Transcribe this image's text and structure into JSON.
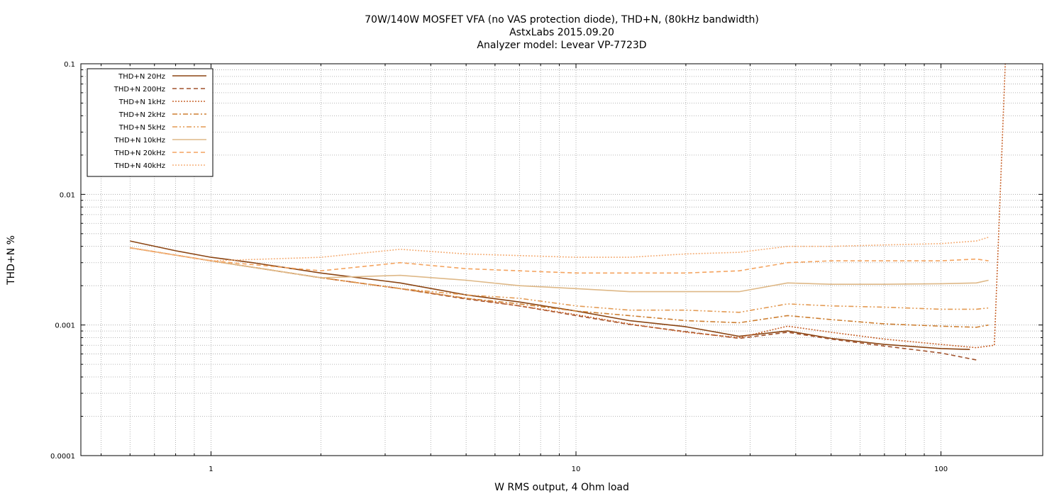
{
  "chart_data": {
    "type": "line",
    "title": [
      "70W/140W MOSFET VFA (no VAS protection diode), THD+N, (80kHz bandwidth)",
      "AstxLabs 2015.09.20",
      "Analyzer model: Levear VP-7723D"
    ],
    "xlabel": "W RMS output, 4 Ohm load",
    "ylabel": "THD+N %",
    "xscale": "log",
    "yscale": "log",
    "xlim": [
      0.44,
      190
    ],
    "ylim": [
      0.0001,
      0.1
    ],
    "x_ticks": [
      {
        "value": 1,
        "label": "1"
      },
      {
        "value": 10,
        "label": "10"
      },
      {
        "value": 100,
        "label": "100"
      }
    ],
    "y_ticks": [
      {
        "value": 0.0001,
        "label": "0.0001"
      },
      {
        "value": 0.001,
        "label": "0.001"
      },
      {
        "value": 0.01,
        "label": "0.01"
      },
      {
        "value": 0.1,
        "label": "0.1"
      }
    ],
    "grid": true,
    "legend_position": "top-left",
    "series": [
      {
        "name": "THD+N 20Hz",
        "color": "#8b4513",
        "dash": "solid",
        "x": [
          0.6,
          0.8,
          1.0,
          1.3,
          2.0,
          3.3,
          5.0,
          7.0,
          10.0,
          14.0,
          20.0,
          28.0,
          38.0,
          50.0,
          70.0,
          100.0,
          120.0
        ],
        "y": [
          0.0044,
          0.0037,
          0.0033,
          0.003,
          0.0025,
          0.0021,
          0.0017,
          0.0015,
          0.00128,
          0.00108,
          0.00097,
          0.00082,
          0.0009,
          0.00079,
          0.00071,
          0.00066,
          0.00065
        ]
      },
      {
        "name": "THD+N 200Hz",
        "color": "#a0522d",
        "dash": "dashed",
        "x": [
          0.6,
          1.0,
          2.0,
          3.3,
          5.0,
          7.0,
          10.0,
          14.0,
          20.0,
          28.0,
          38.0,
          50.0,
          70.0,
          100.0,
          125.0
        ],
        "y": [
          0.0039,
          0.0031,
          0.0023,
          0.0019,
          0.00158,
          0.0014,
          0.00118,
          0.00101,
          0.00089,
          0.00079,
          0.00088,
          0.00078,
          0.00069,
          0.00061,
          0.00054
        ]
      },
      {
        "name": "THD+N 1kHz",
        "color": "#c8642d",
        "dash": "dotted",
        "x": [
          0.6,
          1.0,
          2.0,
          3.3,
          5.0,
          7.0,
          10.0,
          14.0,
          20.0,
          28.0,
          38.0,
          50.0,
          70.0,
          100.0,
          125.0,
          140.0,
          150.0
        ],
        "y": [
          0.0039,
          0.0031,
          0.0023,
          0.0019,
          0.0016,
          0.0014,
          0.0012,
          0.00102,
          0.00088,
          0.0008,
          0.00098,
          0.00088,
          0.00078,
          0.00071,
          0.00067,
          0.0007,
          0.1
        ]
      },
      {
        "name": "THD+N 2kHz",
        "color": "#cd7f32",
        "dash": "dashdot",
        "x": [
          0.6,
          1.0,
          2.0,
          3.3,
          5.0,
          7.0,
          10.0,
          14.0,
          20.0,
          28.0,
          38.0,
          50.0,
          70.0,
          100.0,
          125.0,
          135.0
        ],
        "y": [
          0.0039,
          0.0031,
          0.0023,
          0.0019,
          0.0016,
          0.00145,
          0.00128,
          0.00118,
          0.00108,
          0.00104,
          0.00118,
          0.0011,
          0.00102,
          0.00098,
          0.00096,
          0.001
        ]
      },
      {
        "name": "THD+N 5kHz",
        "color": "#e39a53",
        "dash": "dashdotdot",
        "x": [
          0.6,
          1.0,
          2.0,
          3.3,
          5.0,
          7.0,
          10.0,
          14.0,
          20.0,
          28.0,
          38.0,
          50.0,
          70.0,
          100.0,
          125.0,
          135.0
        ],
        "y": [
          0.0039,
          0.0031,
          0.0023,
          0.0019,
          0.0017,
          0.0016,
          0.0014,
          0.0013,
          0.0013,
          0.00125,
          0.00145,
          0.0014,
          0.00137,
          0.00132,
          0.00132,
          0.00135
        ]
      },
      {
        "name": "THD+N 10kHz",
        "color": "#deb887",
        "dash": "solid",
        "x": [
          0.6,
          1.0,
          2.0,
          3.3,
          5.0,
          7.0,
          10.0,
          14.0,
          20.0,
          28.0,
          38.0,
          50.0,
          70.0,
          100.0,
          125.0,
          135.0
        ],
        "y": [
          0.0039,
          0.0031,
          0.0023,
          0.0024,
          0.0022,
          0.002,
          0.0019,
          0.0018,
          0.0018,
          0.0018,
          0.0021,
          0.00205,
          0.00205,
          0.00207,
          0.0021,
          0.0022
        ]
      },
      {
        "name": "THD+N 20kHz",
        "color": "#f4a460",
        "dash": "dashed",
        "x": [
          0.6,
          1.0,
          2.0,
          3.3,
          5.0,
          7.0,
          10.0,
          14.0,
          20.0,
          28.0,
          38.0,
          50.0,
          70.0,
          100.0,
          125.0,
          135.0
        ],
        "y": [
          0.0039,
          0.0031,
          0.0026,
          0.003,
          0.0027,
          0.0026,
          0.0025,
          0.0025,
          0.0025,
          0.0026,
          0.003,
          0.0031,
          0.0031,
          0.0031,
          0.0032,
          0.0031
        ]
      },
      {
        "name": "THD+N 40kHz",
        "color": "#f5b07a",
        "dash": "dotted",
        "x": [
          0.6,
          1.0,
          2.0,
          3.3,
          5.0,
          7.0,
          10.0,
          14.0,
          20.0,
          28.0,
          38.0,
          50.0,
          70.0,
          100.0,
          125.0,
          135.0
        ],
        "y": [
          0.0039,
          0.0031,
          0.0033,
          0.0038,
          0.0035,
          0.0034,
          0.0033,
          0.0033,
          0.0035,
          0.0036,
          0.004,
          0.004,
          0.0041,
          0.0042,
          0.0044,
          0.0047
        ]
      }
    ]
  }
}
